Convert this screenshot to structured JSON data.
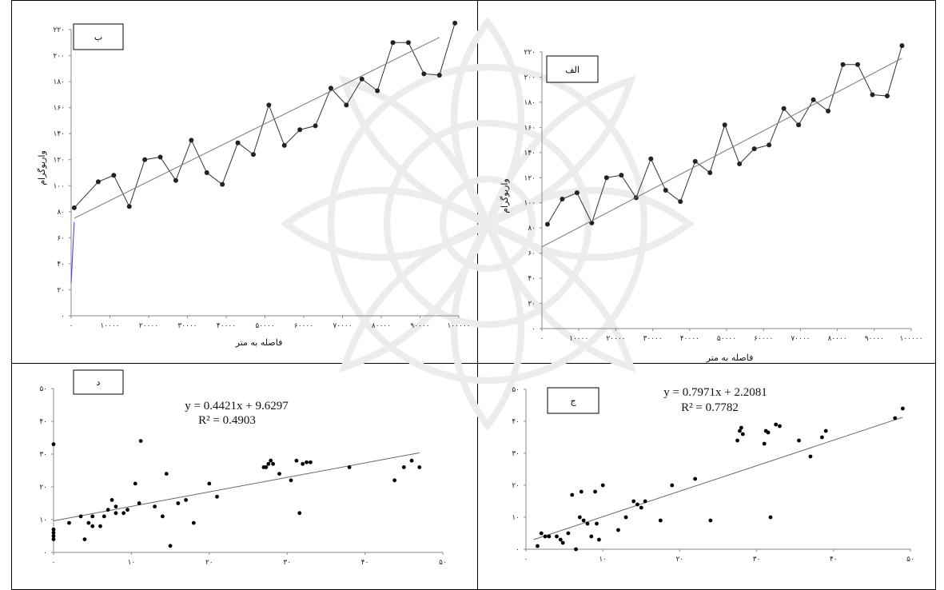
{
  "chart_data": [
    {
      "id": "top-left",
      "type": "line",
      "tag": "ب",
      "xlabel": "فاصله به متر",
      "ylabel": "واریوگرام",
      "xlim": [
        0,
        100000
      ],
      "ylim": [
        0,
        220
      ],
      "x_ticks": [
        "۰",
        "۱۰۰۰۰",
        "۲۰۰۰۰",
        "۳۰۰۰۰",
        "۴۰۰۰۰",
        "۵۰۰۰۰",
        "۶۰۰۰۰",
        "۷۰۰۰۰",
        "۸۰۰۰۰",
        "۹۰۰۰۰",
        "۱۰۰۰۰۰"
      ],
      "y_ticks": [
        "۰",
        "۲۰",
        "۴۰",
        "۶۰",
        "۸۰",
        "۱۰۰",
        "۱۲۰",
        "۱۴۰",
        "۱۶۰",
        "۱۸۰",
        "۲۰۰",
        "۲۲۰"
      ],
      "series": [
        {
          "x": [
            800,
            7000,
            11000,
            15000,
            19000,
            23000,
            27000,
            31000,
            35000,
            39000,
            43000,
            47000,
            51000,
            55000,
            59000,
            63000,
            67000,
            71000,
            75000,
            79000,
            83000,
            87000,
            91000,
            95000,
            99000
          ],
          "y": [
            83,
            103,
            108,
            84,
            120,
            122,
            104,
            135,
            110,
            101,
            133,
            124,
            162,
            131,
            143,
            146,
            175,
            162,
            182,
            173,
            210,
            210,
            186,
            185,
            225
          ]
        },
        {
          "x": [
            800,
            95000
          ],
          "y": [
            75,
            214
          ]
        },
        {
          "x": [
            0,
            800
          ],
          "y": [
            25,
            72
          ]
        }
      ]
    },
    {
      "id": "top-right",
      "type": "line",
      "tag": "الف",
      "xlabel": "فاصله به متر",
      "ylabel": "واریوگرام",
      "xlim": [
        0,
        100000
      ],
      "ylim": [
        0,
        220
      ],
      "x_ticks": [
        "۰",
        "۱۰۰۰۰",
        "۲۰۰۰۰",
        "۳۰۰۰۰",
        "۴۰۰۰۰",
        "۵۰۰۰۰",
        "۶۰۰۰۰",
        "۷۰۰۰۰",
        "۸۰۰۰۰",
        "۹۰۰۰۰",
        "۱۰۰۰۰۰"
      ],
      "y_ticks": [
        "۰",
        "۲۰",
        "۴۰",
        "۶۰",
        "۸۰",
        "۱۰۰",
        "۱۲۰",
        "۱۴۰",
        "۱۶۰",
        "۱۸۰",
        "۲۰۰",
        "۲۲۰"
      ],
      "series": [
        {
          "x": [
            1500,
            5500,
            9500,
            13500,
            17500,
            21500,
            25500,
            29500,
            33500,
            37500,
            41500,
            45500,
            49500,
            53500,
            57500,
            61500,
            65500,
            69500,
            73500,
            77500,
            81500,
            85500,
            89500,
            93500,
            97500
          ],
          "y": [
            83,
            103,
            108,
            84,
            120,
            122,
            104,
            135,
            110,
            101,
            133,
            124,
            162,
            131,
            143,
            146,
            175,
            162,
            182,
            173,
            210,
            210,
            186,
            185,
            225
          ]
        },
        {
          "x": [
            0,
            97500
          ],
          "y": [
            65,
            215
          ]
        }
      ]
    },
    {
      "id": "bottom-left",
      "type": "scatter",
      "tag": "د",
      "equation": "y = 0.4421x + 9.6297",
      "r2": "R² = 0.4903",
      "xlim": [
        0,
        50
      ],
      "ylim": [
        0,
        50
      ],
      "x_ticks": [
        "۰",
        "۱۰",
        "۲۰",
        "۳۰",
        "۴۰",
        "۵۰"
      ],
      "y_ticks": [
        "۰",
        "۱۰",
        "۲۰",
        "۳۰",
        "۴۰",
        "۵۰"
      ],
      "trend": {
        "slope": 0.4421,
        "intercept": 9.6297,
        "x_range": [
          0,
          47
        ]
      },
      "points": [
        [
          0,
          4
        ],
        [
          0,
          5
        ],
        [
          0,
          6
        ],
        [
          0,
          7
        ],
        [
          0,
          33
        ],
        [
          2,
          9
        ],
        [
          3.5,
          11
        ],
        [
          4,
          4
        ],
        [
          4.5,
          9
        ],
        [
          5,
          11
        ],
        [
          5,
          8
        ],
        [
          6,
          8
        ],
        [
          6.5,
          11
        ],
        [
          7,
          13
        ],
        [
          7.5,
          16
        ],
        [
          8,
          12
        ],
        [
          8,
          14
        ],
        [
          9,
          12
        ],
        [
          9.5,
          13
        ],
        [
          10.5,
          21
        ],
        [
          11,
          15
        ],
        [
          11.2,
          34
        ],
        [
          13,
          14
        ],
        [
          14,
          11
        ],
        [
          14.5,
          24
        ],
        [
          15,
          2
        ],
        [
          16,
          15
        ],
        [
          17,
          16
        ],
        [
          18,
          9
        ],
        [
          20,
          21
        ],
        [
          21,
          17
        ],
        [
          27,
          26
        ],
        [
          27.3,
          26
        ],
        [
          27.6,
          27
        ],
        [
          27.9,
          28
        ],
        [
          28.2,
          27
        ],
        [
          29,
          24
        ],
        [
          30.5,
          22
        ],
        [
          31.2,
          28
        ],
        [
          31.6,
          12
        ],
        [
          32,
          27
        ],
        [
          32.5,
          27.5
        ],
        [
          33,
          27.5
        ],
        [
          38,
          26
        ],
        [
          43.8,
          22
        ],
        [
          45,
          26
        ],
        [
          46,
          28
        ],
        [
          47,
          26
        ]
      ]
    },
    {
      "id": "bottom-right",
      "type": "scatter",
      "tag": "ج",
      "equation": "y = 0.7971x + 2.2081",
      "r2": "R² = 0.7782",
      "xlim": [
        0,
        50
      ],
      "ylim": [
        0,
        50
      ],
      "x_ticks": [
        "۰",
        "۱۰",
        "۲۰",
        "۳۰",
        "۴۰",
        "۵۰"
      ],
      "y_ticks": [
        "۰",
        "۱۰",
        "۲۰",
        "۳۰",
        "۴۰",
        "۵۰"
      ],
      "trend": {
        "slope": 0.7971,
        "intercept": 2.2081,
        "x_range": [
          1,
          49
        ]
      },
      "points": [
        [
          1.5,
          1
        ],
        [
          2,
          5
        ],
        [
          2.5,
          4
        ],
        [
          3,
          4
        ],
        [
          4,
          4
        ],
        [
          4.5,
          3
        ],
        [
          4.8,
          2
        ],
        [
          5.5,
          5
        ],
        [
          6,
          17
        ],
        [
          6.5,
          0
        ],
        [
          7,
          10
        ],
        [
          7.2,
          18
        ],
        [
          7.5,
          9
        ],
        [
          8,
          8
        ],
        [
          8.5,
          4
        ],
        [
          9,
          18
        ],
        [
          9.2,
          8
        ],
        [
          9.5,
          3
        ],
        [
          10,
          20
        ],
        [
          12,
          6
        ],
        [
          13,
          10
        ],
        [
          14,
          15
        ],
        [
          14.5,
          14
        ],
        [
          15,
          13
        ],
        [
          15.5,
          15
        ],
        [
          17.5,
          9
        ],
        [
          19,
          20
        ],
        [
          22,
          22
        ],
        [
          24,
          9
        ],
        [
          27.5,
          34
        ],
        [
          27.8,
          37
        ],
        [
          28,
          38
        ],
        [
          28.2,
          36
        ],
        [
          31,
          33
        ],
        [
          31.2,
          37
        ],
        [
          31.5,
          36.5
        ],
        [
          31.8,
          10
        ],
        [
          32.5,
          39
        ],
        [
          33,
          38.5
        ],
        [
          35.5,
          34
        ],
        [
          37,
          29
        ],
        [
          38.5,
          35
        ],
        [
          39,
          37
        ],
        [
          48,
          41
        ],
        [
          49,
          44
        ]
      ]
    }
  ]
}
